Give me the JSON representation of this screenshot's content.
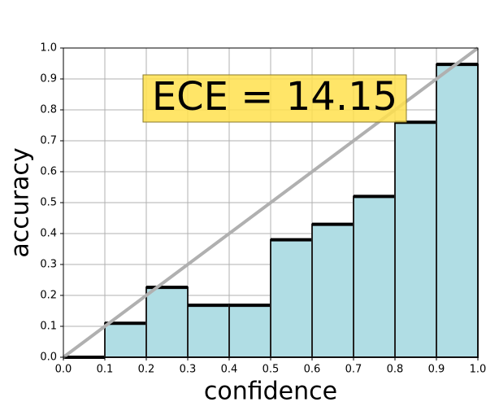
{
  "chart_data": {
    "type": "histogram",
    "xlabel": "confidence",
    "ylabel": "accuracy",
    "annotation": "ECE = 14.15",
    "bins": [
      0.0,
      0.1,
      0.2,
      0.3,
      0.4,
      0.5,
      0.6,
      0.7,
      0.8,
      0.9,
      1.0
    ],
    "values": [
      0,
      0.11,
      0.226,
      0.168,
      0.168,
      0.38,
      0.43,
      0.52,
      0.76,
      0.947
    ],
    "color": "#b0dde4",
    "edge_color": "#000000",
    "diagonal_color": "#b0b0b0",
    "xlim": [
      0.0,
      1.0
    ],
    "ylim": [
      0.0,
      1.0
    ],
    "xticks": [
      {
        "value": 0.0,
        "label": "0.0"
      },
      0.1,
      0.2,
      0.3,
      0.4,
      0.5,
      0.6,
      0.7,
      0.8,
      0.9,
      {
        "value": 1.0,
        "label": "1.0"
      }
    ],
    "yticks": [
      {
        "value": 0.0,
        "label": "0.0"
      },
      0.1,
      0.2,
      0.3,
      0.4,
      0.5,
      0.6,
      0.7,
      0.8,
      0.9,
      {
        "value": 1.0,
        "label": "1.0"
      }
    ],
    "grid": true
  }
}
